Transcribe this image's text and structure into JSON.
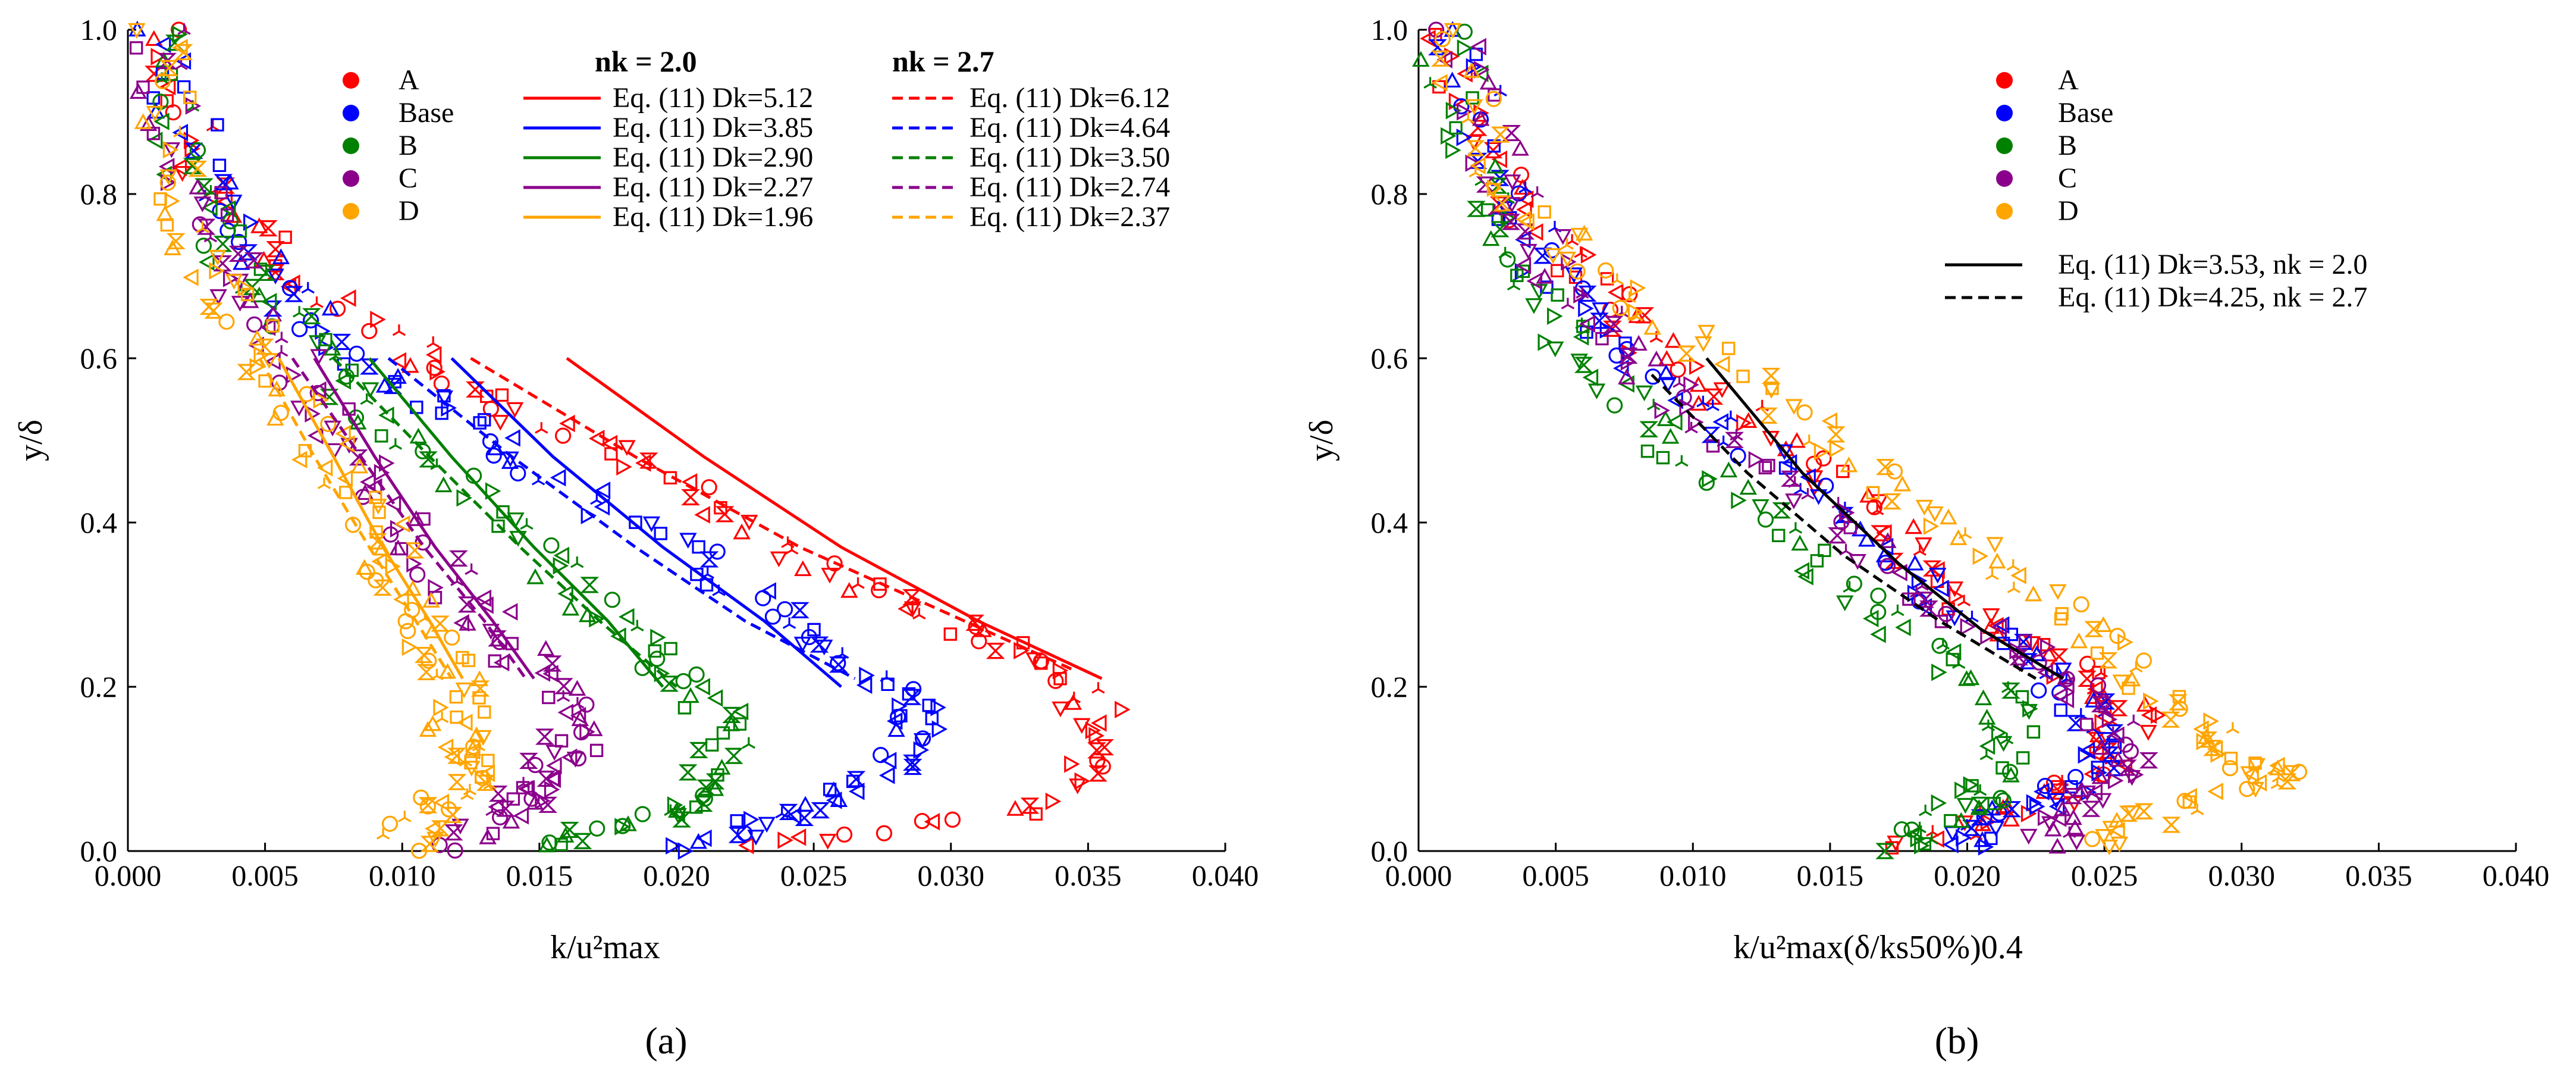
{
  "figure": {
    "panel_a_label": "(a)",
    "panel_b_label": "(b)"
  },
  "chart_data": [
    {
      "type": "scatter",
      "panel": "(a)",
      "xlabel": "k/u²max",
      "ylabel": "y/δ",
      "xlim": [
        0.0,
        0.04
      ],
      "ylim": [
        0.0,
        1.0
      ],
      "xticks": [
        "0.000",
        "0.005",
        "0.010",
        "0.015",
        "0.020",
        "0.025",
        "0.030",
        "0.035",
        "0.040"
      ],
      "yticks": [
        "0.0",
        "0.2",
        "0.4",
        "0.6",
        "0.8",
        "1.0"
      ],
      "grid": false,
      "legend_headers": {
        "solid": "nk = 2.0",
        "dashed": "nk = 2.7"
      },
      "scatter_series": [
        {
          "name": "A",
          "color": "#ff0000",
          "anchors": [
            [
              0.001,
              1.0
            ],
            [
              0.003,
              0.82
            ],
            [
              0.006,
              0.7
            ],
            [
              0.011,
              0.6
            ],
            [
              0.015,
              0.52
            ],
            [
              0.02,
              0.45
            ],
            [
              0.025,
              0.35
            ],
            [
              0.03,
              0.28
            ],
            [
              0.034,
              0.22
            ],
            [
              0.036,
              0.14
            ],
            [
              0.033,
              0.05
            ],
            [
              0.022,
              0.0
            ]
          ]
        },
        {
          "name": "Base",
          "color": "#0000ff",
          "anchors": [
            [
              0.001,
              1.0
            ],
            [
              0.003,
              0.82
            ],
            [
              0.005,
              0.7
            ],
            [
              0.008,
              0.6
            ],
            [
              0.012,
              0.53
            ],
            [
              0.016,
              0.45
            ],
            [
              0.021,
              0.35
            ],
            [
              0.025,
              0.27
            ],
            [
              0.028,
              0.2
            ],
            [
              0.029,
              0.15
            ],
            [
              0.027,
              0.08
            ],
            [
              0.024,
              0.04
            ],
            [
              0.02,
              0.0
            ]
          ]
        },
        {
          "name": "B",
          "color": "#008000",
          "anchors": [
            [
              0.001,
              1.0
            ],
            [
              0.002,
              0.82
            ],
            [
              0.004,
              0.7
            ],
            [
              0.007,
              0.6
            ],
            [
              0.01,
              0.5
            ],
            [
              0.014,
              0.4
            ],
            [
              0.017,
              0.3
            ],
            [
              0.02,
              0.22
            ],
            [
              0.022,
              0.15
            ],
            [
              0.021,
              0.07
            ],
            [
              0.019,
              0.04
            ],
            [
              0.015,
              0.0
            ]
          ]
        },
        {
          "name": "C",
          "color": "#8b008b",
          "anchors": [
            [
              0.001,
              1.0
            ],
            [
              0.002,
              0.82
            ],
            [
              0.004,
              0.7
            ],
            [
              0.006,
              0.6
            ],
            [
              0.008,
              0.5
            ],
            [
              0.01,
              0.4
            ],
            [
              0.012,
              0.32
            ],
            [
              0.014,
              0.25
            ],
            [
              0.016,
              0.18
            ],
            [
              0.016,
              0.12
            ],
            [
              0.015,
              0.08
            ],
            [
              0.014,
              0.05
            ],
            [
              0.012,
              0.0
            ]
          ]
        },
        {
          "name": "D",
          "color": "#ffa500",
          "anchors": [
            [
              0.001,
              1.0
            ],
            [
              0.002,
              0.82
            ],
            [
              0.003,
              0.7
            ],
            [
              0.005,
              0.6
            ],
            [
              0.007,
              0.5
            ],
            [
              0.009,
              0.4
            ],
            [
              0.01,
              0.32
            ],
            [
              0.011,
              0.25
            ],
            [
              0.012,
              0.19
            ],
            [
              0.012,
              0.13
            ],
            [
              0.013,
              0.1
            ],
            [
              0.011,
              0.05
            ],
            [
              0.01,
              0.0
            ]
          ]
        }
      ],
      "line_series": [
        {
          "name": "Eq. (11) Dk=5.12",
          "color": "#ff0000",
          "dash": false,
          "x": [
            0.016,
            0.021,
            0.026,
            0.031,
            0.0355
          ],
          "y": [
            0.6,
            0.48,
            0.37,
            0.28,
            0.21
          ]
        },
        {
          "name": "Eq. (11) Dk=3.85",
          "color": "#0000ff",
          "dash": false,
          "x": [
            0.0118,
            0.0155,
            0.0195,
            0.0232,
            0.026
          ],
          "y": [
            0.6,
            0.48,
            0.37,
            0.28,
            0.2
          ]
        },
        {
          "name": "Eq. (11) Dk=2.90",
          "color": "#008000",
          "dash": false,
          "x": [
            0.0088,
            0.0118,
            0.0148,
            0.0175,
            0.0195
          ],
          "y": [
            0.6,
            0.48,
            0.37,
            0.28,
            0.2
          ]
        },
        {
          "name": "Eq. (11) Dk=2.27",
          "color": "#8b008b",
          "dash": false,
          "x": [
            0.0068,
            0.009,
            0.0112,
            0.0133,
            0.0148
          ],
          "y": [
            0.6,
            0.48,
            0.37,
            0.28,
            0.21
          ]
        },
        {
          "name": "Eq. (11) Dk=1.96",
          "color": "#ffa500",
          "dash": false,
          "x": [
            0.0055,
            0.0075,
            0.0093,
            0.011,
            0.0122
          ],
          "y": [
            0.6,
            0.48,
            0.37,
            0.28,
            0.21
          ]
        },
        {
          "name": "Eq. (11) Dk=6.12",
          "color": "#ff0000",
          "dash": true,
          "x": [
            0.0125,
            0.0185,
            0.0245,
            0.0305,
            0.0345
          ],
          "y": [
            0.6,
            0.48,
            0.37,
            0.28,
            0.22
          ]
        },
        {
          "name": "Eq. (11) Dk=4.64",
          "color": "#0000ff",
          "dash": true,
          "x": [
            0.0095,
            0.014,
            0.0185,
            0.0225,
            0.0265
          ],
          "y": [
            0.6,
            0.48,
            0.37,
            0.28,
            0.21
          ]
        },
        {
          "name": "Eq. (11) Dk=3.50",
          "color": "#008000",
          "dash": true,
          "x": [
            0.0075,
            0.011,
            0.0143,
            0.0172,
            0.02
          ],
          "y": [
            0.6,
            0.48,
            0.37,
            0.28,
            0.2
          ]
        },
        {
          "name": "Eq. (11) Dk=2.74",
          "color": "#8b008b",
          "dash": true,
          "x": [
            0.006,
            0.0085,
            0.0108,
            0.013,
            0.0145
          ],
          "y": [
            0.6,
            0.48,
            0.37,
            0.28,
            0.21
          ]
        },
        {
          "name": "Eq. (11) Dk=2.37",
          "color": "#ffa500",
          "dash": true,
          "x": [
            0.0048,
            0.0068,
            0.0088,
            0.0105,
            0.0118
          ],
          "y": [
            0.6,
            0.48,
            0.37,
            0.28,
            0.21
          ]
        }
      ]
    },
    {
      "type": "scatter",
      "panel": "(b)",
      "xlabel": "k/u²max(δ/ks50%)0.4",
      "ylabel": "y/δ",
      "xlim": [
        0.0,
        0.04
      ],
      "ylim": [
        0.0,
        1.0
      ],
      "xticks": [
        "0.000",
        "0.005",
        "0.010",
        "0.015",
        "0.020",
        "0.025",
        "0.030",
        "0.035",
        "0.040"
      ],
      "yticks": [
        "0.0",
        "0.2",
        "0.4",
        "0.6",
        "0.8",
        "1.0"
      ],
      "grid": false,
      "scatter_series": [
        {
          "name": "A",
          "color": "#ff0000",
          "anchors": [
            [
              0.001,
              1.0
            ],
            [
              0.003,
              0.82
            ],
            [
              0.006,
              0.7
            ],
            [
              0.009,
              0.6
            ],
            [
              0.013,
              0.5
            ],
            [
              0.017,
              0.4
            ],
            [
              0.02,
              0.3
            ],
            [
              0.024,
              0.22
            ],
            [
              0.026,
              0.17
            ],
            [
              0.025,
              0.1
            ],
            [
              0.022,
              0.05
            ],
            [
              0.017,
              0.0
            ]
          ]
        },
        {
          "name": "Base",
          "color": "#0000ff",
          "anchors": [
            [
              0.001,
              1.0
            ],
            [
              0.003,
              0.82
            ],
            [
              0.005,
              0.7
            ],
            [
              0.008,
              0.6
            ],
            [
              0.012,
              0.5
            ],
            [
              0.016,
              0.4
            ],
            [
              0.019,
              0.3
            ],
            [
              0.023,
              0.22
            ],
            [
              0.025,
              0.15
            ],
            [
              0.024,
              0.08
            ],
            [
              0.021,
              0.04
            ],
            [
              0.02,
              0.0
            ]
          ]
        },
        {
          "name": "B",
          "color": "#008000",
          "anchors": [
            [
              0.001,
              1.0
            ],
            [
              0.002,
              0.82
            ],
            [
              0.004,
              0.7
            ],
            [
              0.006,
              0.6
            ],
            [
              0.009,
              0.5
            ],
            [
              0.013,
              0.4
            ],
            [
              0.016,
              0.3
            ],
            [
              0.02,
              0.22
            ],
            [
              0.022,
              0.15
            ],
            [
              0.021,
              0.08
            ],
            [
              0.019,
              0.04
            ],
            [
              0.018,
              0.0
            ]
          ]
        },
        {
          "name": "C",
          "color": "#8b008b",
          "anchors": [
            [
              0.001,
              1.0
            ],
            [
              0.003,
              0.82
            ],
            [
              0.005,
              0.7
            ],
            [
              0.008,
              0.6
            ],
            [
              0.011,
              0.5
            ],
            [
              0.015,
              0.4
            ],
            [
              0.019,
              0.3
            ],
            [
              0.023,
              0.23
            ],
            [
              0.025,
              0.17
            ],
            [
              0.026,
              0.1
            ],
            [
              0.024,
              0.05
            ],
            [
              0.023,
              0.0
            ]
          ]
        },
        {
          "name": "D",
          "color": "#ffa500",
          "anchors": [
            [
              0.001,
              1.0
            ],
            [
              0.003,
              0.82
            ],
            [
              0.006,
              0.72
            ],
            [
              0.01,
              0.62
            ],
            [
              0.014,
              0.52
            ],
            [
              0.018,
              0.42
            ],
            [
              0.022,
              0.33
            ],
            [
              0.025,
              0.25
            ],
            [
              0.028,
              0.17
            ],
            [
              0.03,
              0.11
            ],
            [
              0.032,
              0.09
            ],
            [
              0.027,
              0.05
            ],
            [
              0.025,
              0.0
            ]
          ]
        }
      ],
      "line_series": [
        {
          "name": "Eq. (11) Dk=3.53, nk = 2.0",
          "color": "#000000",
          "dash": false,
          "x": [
            0.0105,
            0.014,
            0.0175,
            0.0205,
            0.0235
          ],
          "y": [
            0.6,
            0.46,
            0.35,
            0.27,
            0.21
          ]
        },
        {
          "name": "Eq. (11) Dk=4.25, nk = 2.7",
          "color": "#000000",
          "dash": true,
          "x": [
            0.0085,
            0.012,
            0.0155,
            0.019,
            0.0225
          ],
          "y": [
            0.58,
            0.46,
            0.36,
            0.28,
            0.21
          ]
        }
      ]
    }
  ],
  "legend_a": {
    "markers": [
      "A",
      "Base",
      "B",
      "C",
      "D"
    ],
    "solid_header": "nk = 2.0",
    "dashed_header": "nk = 2.7",
    "solid": [
      "Eq. (11) Dk=5.12",
      "Eq. (11) Dk=3.85",
      "Eq. (11) Dk=2.90",
      "Eq. (11) Dk=2.27",
      "Eq. (11) Dk=1.96"
    ],
    "dashed": [
      "Eq. (11) Dk=6.12",
      "Eq. (11) Dk=4.64",
      "Eq. (11) Dk=3.50",
      "Eq. (11) Dk=2.74",
      "Eq. (11) Dk=2.37"
    ]
  },
  "legend_b": {
    "markers": [
      "A",
      "Base",
      "B",
      "C",
      "D"
    ],
    "lines": [
      "Eq. (11) Dk=3.53, nk = 2.0",
      "Eq. (11) Dk=4.25, nk = 2.7"
    ]
  }
}
